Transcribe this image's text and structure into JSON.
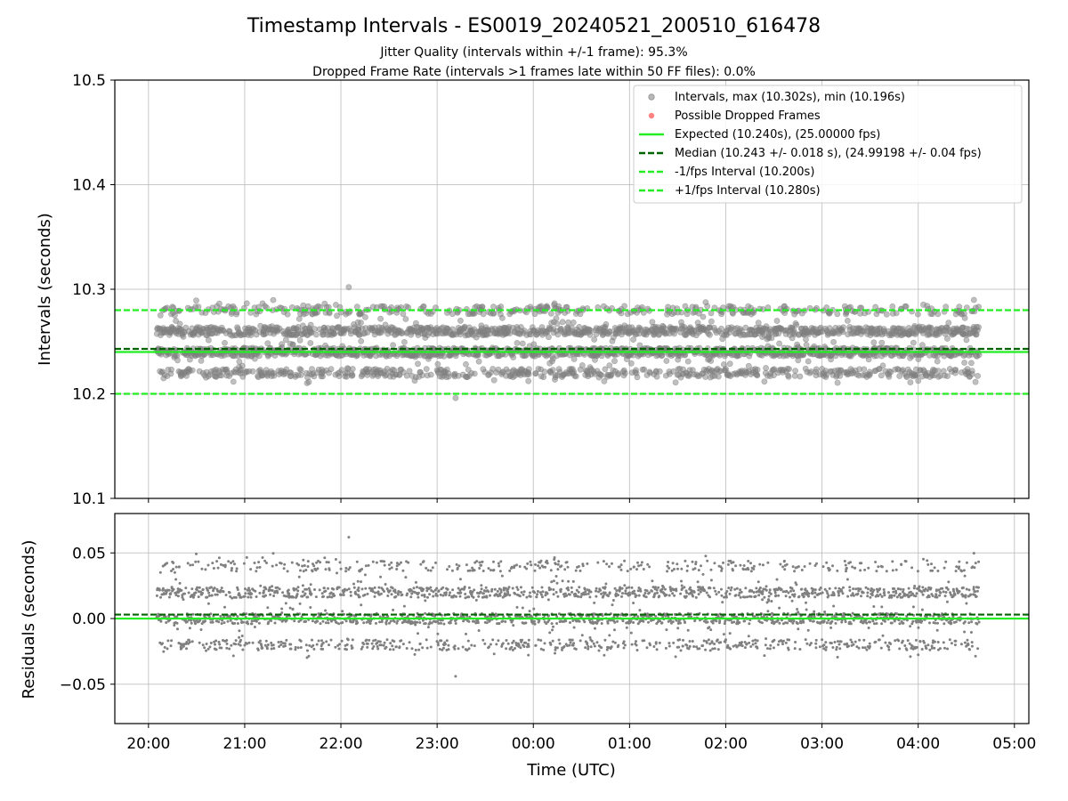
{
  "figure": {
    "title": "Timestamp Intervals - ES0019_20240521_200510_616478",
    "subtitle_line1": "Jitter Quality (intervals within +/-1 frame): 95.3%",
    "subtitle_line2": "Dropped Frame Rate (intervals >1 frames late within 50 FF files): 0.0%"
  },
  "colors": {
    "points": "#808080",
    "dropped": "#ff4d4d",
    "expected": "#22ee22",
    "median": "#006400",
    "bounds": "#22ee22",
    "grid": "#b0b0b0"
  },
  "chart_data": [
    {
      "type": "scatter",
      "ylabel": "Intervals (seconds)",
      "xlim": [
        "19:39",
        "05:09"
      ],
      "ylim": [
        10.1,
        10.5
      ],
      "yticks": [
        10.1,
        10.2,
        10.3,
        10.4,
        10.5
      ],
      "ytick_labels": [
        "10.1",
        "10.2",
        "10.3",
        "10.4",
        "10.5"
      ],
      "grid": true,
      "legend_position": "top-right",
      "legend": [
        {
          "label": "Intervals, max (10.302s), min (10.196s)",
          "kind": "marker"
        },
        {
          "label": "Possible Dropped Frames",
          "kind": "marker"
        },
        {
          "label": "Expected (10.240s), (25.00000 fps)",
          "kind": "solid"
        },
        {
          "label": "Median (10.243 +/- 0.018 s), (24.99198 +/- 0.04 fps)",
          "kind": "dashed"
        },
        {
          "label": "-1/fps Interval (10.200s)",
          "kind": "dashed"
        },
        {
          "label": "+1/fps Interval (10.280s)",
          "kind": "dashed"
        }
      ],
      "reference_lines": {
        "expected": 10.24,
        "median": 10.243,
        "lower": 10.2,
        "upper": 10.28
      },
      "series": {
        "x_start": "20:05",
        "x_end": "04:38",
        "point_count": 3000,
        "max": 10.302,
        "min": 10.196,
        "levels": [
          10.22,
          10.24,
          10.26,
          10.28
        ],
        "dropped_frames": 0
      }
    },
    {
      "type": "scatter",
      "ylabel": "Residuals (seconds)",
      "xlabel": "Time (UTC)",
      "ylim": [
        -0.08,
        0.08
      ],
      "yticks": [
        -0.05,
        0,
        0.05
      ],
      "ytick_labels": [
        "−0.05",
        "0.00",
        "0.05"
      ],
      "xticks": [
        "20:00",
        "21:00",
        "22:00",
        "23:00",
        "00:00",
        "01:00",
        "02:00",
        "03:00",
        "04:00",
        "05:00"
      ],
      "grid": true,
      "reference_lines": {
        "zero": 0,
        "median_offset": 0.003
      },
      "series": {
        "max": 0.062,
        "min": -0.044
      }
    }
  ]
}
